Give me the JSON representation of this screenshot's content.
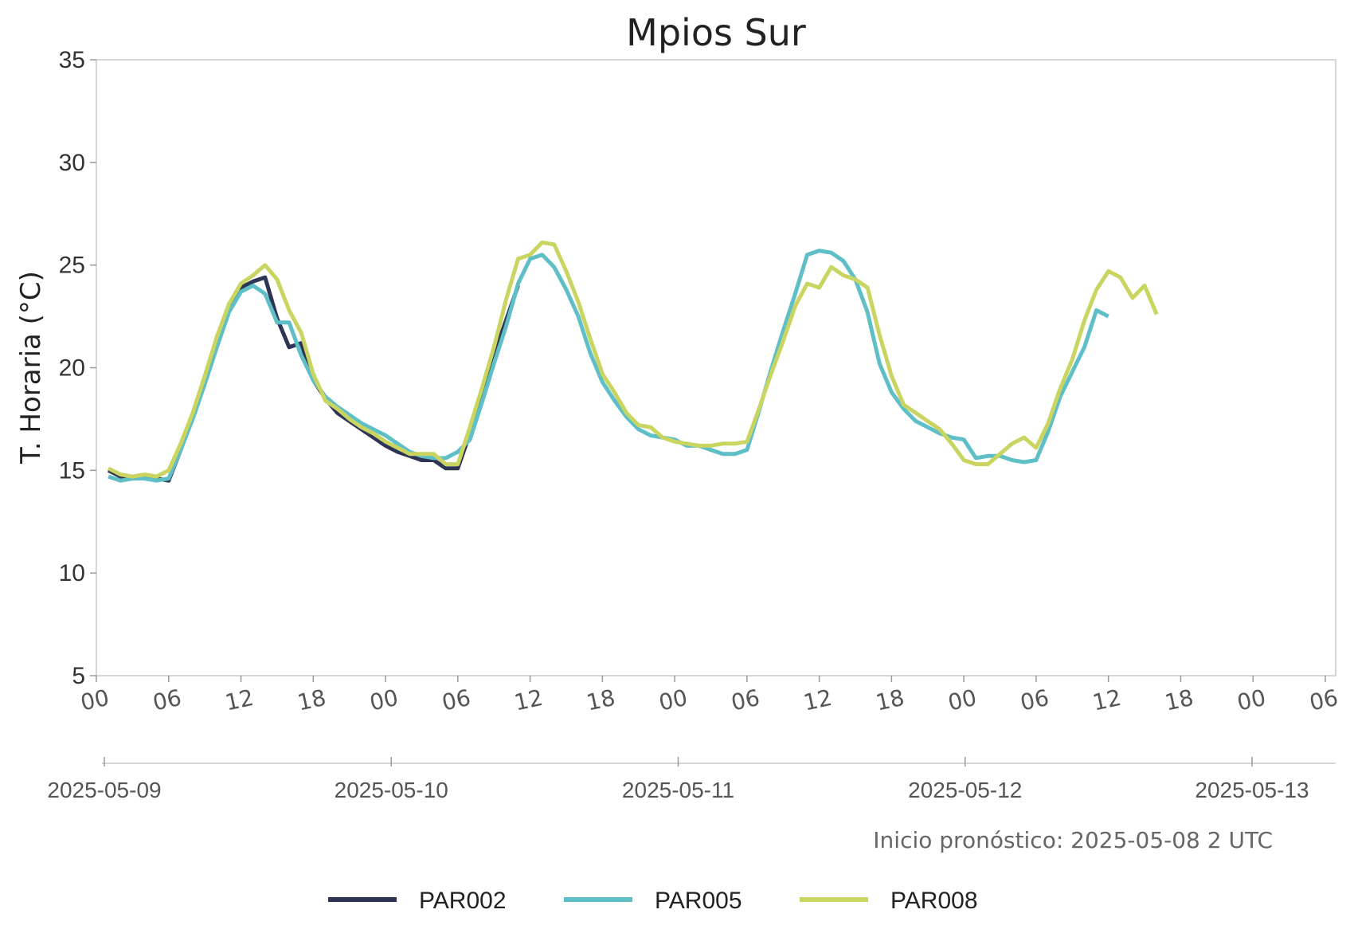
{
  "chart_data": {
    "type": "line",
    "title": "Mpios Sur",
    "ylabel": "T. Horaria (°C)",
    "ylim": [
      5,
      35
    ],
    "yticks": [
      5,
      10,
      15,
      20,
      25,
      30,
      35
    ],
    "x_unit": "hour",
    "x_range": [
      "2025-05-09 00:00",
      "2025-05-13 06:00"
    ],
    "hour_tick_labels": [
      "00",
      "06",
      "12",
      "18",
      "00",
      "06",
      "12",
      "18",
      "00",
      "06",
      "12",
      "18",
      "00",
      "06",
      "12",
      "18",
      "00",
      "06"
    ],
    "date_tick_labels": [
      "2025-05-09",
      "2025-05-10",
      "2025-05-11",
      "2025-05-12",
      "2025-05-13"
    ],
    "annotation": "Inicio pronóstico: 2025-05-08 2 UTC",
    "grid": false,
    "legend_position": "bottom",
    "series": [
      {
        "name": "PAR002",
        "color": "#2e3454",
        "x": [
          "2025-05-09 01:00",
          "2025-05-09 02:00",
          "2025-05-09 03:00",
          "2025-05-09 04:00",
          "2025-05-09 05:00",
          "2025-05-09 06:00",
          "2025-05-09 07:00",
          "2025-05-09 08:00",
          "2025-05-09 09:00",
          "2025-05-09 10:00",
          "2025-05-09 11:00",
          "2025-05-09 12:00",
          "2025-05-09 13:00",
          "2025-05-09 14:00",
          "2025-05-09 15:00",
          "2025-05-09 16:00",
          "2025-05-09 17:00",
          "2025-05-09 18:00",
          "2025-05-09 19:00",
          "2025-05-09 20:00",
          "2025-05-09 21:00",
          "2025-05-09 22:00",
          "2025-05-09 23:00",
          "2025-05-10 00:00",
          "2025-05-10 01:00",
          "2025-05-10 02:00",
          "2025-05-10 03:00",
          "2025-05-10 04:00",
          "2025-05-10 05:00",
          "2025-05-10 06:00",
          "2025-05-10 07:00",
          "2025-05-10 08:00",
          "2025-05-10 09:00",
          "2025-05-10 10:00",
          "2025-05-10 11:00"
        ],
        "y": [
          15.0,
          14.7,
          14.6,
          14.7,
          14.6,
          14.5,
          16.0,
          17.6,
          19.4,
          21.5,
          23.0,
          23.9,
          24.2,
          24.4,
          22.4,
          21.0,
          21.2,
          19.4,
          18.5,
          17.8,
          17.4,
          17.0,
          16.6,
          16.2,
          15.9,
          15.7,
          15.5,
          15.5,
          15.1,
          15.1,
          16.8,
          18.6,
          20.6,
          22.3,
          24.0
        ]
      },
      {
        "name": "PAR005",
        "color": "#5fbfc7",
        "x": [
          "2025-05-09 01:00",
          "2025-05-09 02:00",
          "2025-05-09 03:00",
          "2025-05-09 04:00",
          "2025-05-09 05:00",
          "2025-05-09 06:00",
          "2025-05-09 07:00",
          "2025-05-09 08:00",
          "2025-05-09 09:00",
          "2025-05-09 10:00",
          "2025-05-09 11:00",
          "2025-05-09 12:00",
          "2025-05-09 13:00",
          "2025-05-09 14:00",
          "2025-05-09 15:00",
          "2025-05-09 16:00",
          "2025-05-09 17:00",
          "2025-05-09 18:00",
          "2025-05-09 19:00",
          "2025-05-09 20:00",
          "2025-05-09 21:00",
          "2025-05-09 22:00",
          "2025-05-09 23:00",
          "2025-05-10 00:00",
          "2025-05-10 01:00",
          "2025-05-10 02:00",
          "2025-05-10 03:00",
          "2025-05-10 04:00",
          "2025-05-10 05:00",
          "2025-05-10 06:00",
          "2025-05-10 07:00",
          "2025-05-10 08:00",
          "2025-05-10 09:00",
          "2025-05-10 10:00",
          "2025-05-10 11:00",
          "2025-05-10 12:00",
          "2025-05-10 13:00",
          "2025-05-10 14:00",
          "2025-05-10 15:00",
          "2025-05-10 16:00",
          "2025-05-10 17:00",
          "2025-05-10 18:00",
          "2025-05-10 19:00",
          "2025-05-10 20:00",
          "2025-05-10 21:00",
          "2025-05-10 22:00",
          "2025-05-10 23:00",
          "2025-05-11 00:00",
          "2025-05-11 01:00",
          "2025-05-11 02:00",
          "2025-05-11 03:00",
          "2025-05-11 04:00",
          "2025-05-11 05:00",
          "2025-05-11 06:00",
          "2025-05-11 07:00",
          "2025-05-11 08:00",
          "2025-05-11 09:00",
          "2025-05-11 10:00",
          "2025-05-11 11:00",
          "2025-05-11 12:00",
          "2025-05-11 13:00",
          "2025-05-11 14:00",
          "2025-05-11 15:00",
          "2025-05-11 16:00",
          "2025-05-11 17:00",
          "2025-05-11 18:00",
          "2025-05-11 19:00",
          "2025-05-11 20:00",
          "2025-05-11 21:00",
          "2025-05-11 22:00",
          "2025-05-11 23:00",
          "2025-05-12 00:00",
          "2025-05-12 01:00",
          "2025-05-12 02:00",
          "2025-05-12 03:00",
          "2025-05-12 04:00",
          "2025-05-12 05:00",
          "2025-05-12 06:00",
          "2025-05-12 07:00",
          "2025-05-12 08:00",
          "2025-05-12 09:00",
          "2025-05-12 10:00",
          "2025-05-12 11:00",
          "2025-05-12 12:00"
        ],
        "y": [
          14.7,
          14.5,
          14.6,
          14.6,
          14.5,
          14.6,
          16.0,
          17.5,
          19.2,
          21.0,
          22.7,
          23.7,
          24.0,
          23.6,
          22.2,
          22.2,
          20.6,
          19.4,
          18.6,
          18.1,
          17.7,
          17.3,
          17.0,
          16.7,
          16.3,
          15.9,
          15.7,
          15.6,
          15.6,
          15.9,
          16.5,
          18.3,
          20.2,
          22.0,
          24.1,
          25.3,
          25.5,
          24.9,
          23.8,
          22.5,
          20.7,
          19.3,
          18.4,
          17.6,
          17.0,
          16.7,
          16.6,
          16.5,
          16.2,
          16.2,
          16.0,
          15.8,
          15.8,
          16.0,
          17.9,
          19.9,
          21.8,
          23.6,
          25.5,
          25.7,
          25.6,
          25.2,
          24.3,
          22.7,
          20.2,
          18.8,
          18.0,
          17.4,
          17.1,
          16.8,
          16.6,
          16.5,
          15.6,
          15.7,
          15.7,
          15.5,
          15.4,
          15.5,
          16.9,
          18.6,
          19.8,
          21.0,
          22.8,
          22.5
        ]
      },
      {
        "name": "PAR008",
        "color": "#cad561",
        "x": [
          "2025-05-09 01:00",
          "2025-05-09 02:00",
          "2025-05-09 03:00",
          "2025-05-09 04:00",
          "2025-05-09 05:00",
          "2025-05-09 06:00",
          "2025-05-09 07:00",
          "2025-05-09 08:00",
          "2025-05-09 09:00",
          "2025-05-09 10:00",
          "2025-05-09 11:00",
          "2025-05-09 12:00",
          "2025-05-09 13:00",
          "2025-05-09 14:00",
          "2025-05-09 15:00",
          "2025-05-09 16:00",
          "2025-05-09 17:00",
          "2025-05-09 18:00",
          "2025-05-09 19:00",
          "2025-05-09 20:00",
          "2025-05-09 21:00",
          "2025-05-09 22:00",
          "2025-05-09 23:00",
          "2025-05-10 00:00",
          "2025-05-10 01:00",
          "2025-05-10 02:00",
          "2025-05-10 03:00",
          "2025-05-10 04:00",
          "2025-05-10 05:00",
          "2025-05-10 06:00",
          "2025-05-10 07:00",
          "2025-05-10 08:00",
          "2025-05-10 09:00",
          "2025-05-10 10:00",
          "2025-05-10 11:00",
          "2025-05-10 12:00",
          "2025-05-10 13:00",
          "2025-05-10 14:00",
          "2025-05-10 15:00",
          "2025-05-10 16:00",
          "2025-05-10 17:00",
          "2025-05-10 18:00",
          "2025-05-10 19:00",
          "2025-05-10 20:00",
          "2025-05-10 21:00",
          "2025-05-10 22:00",
          "2025-05-10 23:00",
          "2025-05-11 00:00",
          "2025-05-11 01:00",
          "2025-05-11 02:00",
          "2025-05-11 03:00",
          "2025-05-11 04:00",
          "2025-05-11 05:00",
          "2025-05-11 06:00",
          "2025-05-11 07:00",
          "2025-05-11 08:00",
          "2025-05-11 09:00",
          "2025-05-11 10:00",
          "2025-05-11 11:00",
          "2025-05-11 12:00",
          "2025-05-11 13:00",
          "2025-05-11 14:00",
          "2025-05-11 15:00",
          "2025-05-11 16:00",
          "2025-05-11 17:00",
          "2025-05-11 18:00",
          "2025-05-11 19:00",
          "2025-05-11 20:00",
          "2025-05-11 21:00",
          "2025-05-11 22:00",
          "2025-05-11 23:00",
          "2025-05-12 00:00",
          "2025-05-12 01:00",
          "2025-05-12 02:00",
          "2025-05-12 03:00",
          "2025-05-12 04:00",
          "2025-05-12 05:00",
          "2025-05-12 06:00",
          "2025-05-12 07:00",
          "2025-05-12 08:00",
          "2025-05-12 09:00",
          "2025-05-12 10:00",
          "2025-05-12 11:00",
          "2025-05-12 12:00",
          "2025-05-12 13:00",
          "2025-05-12 14:00",
          "2025-05-12 15:00",
          "2025-05-12 16:00"
        ],
        "y": [
          15.1,
          14.8,
          14.7,
          14.8,
          14.7,
          15.0,
          16.3,
          17.8,
          19.6,
          21.5,
          23.1,
          24.1,
          24.5,
          25.0,
          24.3,
          22.8,
          21.7,
          19.7,
          18.4,
          18.0,
          17.5,
          17.1,
          16.8,
          16.4,
          16.1,
          15.8,
          15.8,
          15.8,
          15.3,
          15.3,
          17.1,
          19.0,
          21.0,
          23.3,
          25.3,
          25.5,
          26.1,
          26.0,
          24.7,
          23.2,
          21.4,
          19.7,
          18.8,
          17.8,
          17.2,
          17.1,
          16.6,
          16.4,
          16.3,
          16.2,
          16.2,
          16.3,
          16.3,
          16.4,
          18.0,
          19.7,
          21.3,
          23.0,
          24.1,
          23.9,
          24.9,
          24.5,
          24.3,
          23.9,
          21.6,
          19.6,
          18.2,
          17.8,
          17.4,
          17.0,
          16.3,
          15.5,
          15.3,
          15.3,
          15.8,
          16.3,
          16.6,
          16.1,
          17.3,
          19.0,
          20.4,
          22.3,
          23.8,
          24.7,
          24.4,
          23.4,
          24.0,
          22.6
        ]
      }
    ]
  }
}
